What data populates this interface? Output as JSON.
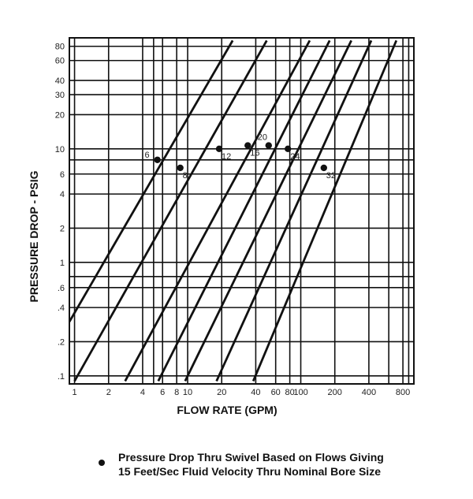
{
  "chart_data": {
    "type": "line",
    "xscale": "log",
    "yscale": "log",
    "xlabel": "FLOW RATE (GPM)",
    "ylabel": "PRESSURE DROP - PSIG",
    "xlim": [
      0.9,
      1000
    ],
    "ylim": [
      0.085,
      95
    ],
    "grid": true,
    "x_ticks": [
      {
        "v": 1,
        "label": "1"
      },
      {
        "v": 2,
        "label": "2"
      },
      {
        "v": 4,
        "label": "4"
      },
      {
        "v": 6,
        "label": "6"
      },
      {
        "v": 8,
        "label": "8"
      },
      {
        "v": 10,
        "label": "10"
      },
      {
        "v": 20,
        "label": "20"
      },
      {
        "v": 40,
        "label": "40"
      },
      {
        "v": 60,
        "label": "60"
      },
      {
        "v": 80,
        "label": "80"
      },
      {
        "v": 100,
        "label": "100"
      },
      {
        "v": 200,
        "label": "200"
      },
      {
        "v": 400,
        "label": "400"
      },
      {
        "v": 800,
        "label": "800"
      }
    ],
    "y_ticks": [
      {
        "v": 0.1,
        "label": ".1"
      },
      {
        "v": 0.2,
        "label": ".2"
      },
      {
        "v": 0.4,
        "label": ".4"
      },
      {
        "v": 0.6,
        "label": ".6"
      },
      {
        "v": 1,
        "label": "1"
      },
      {
        "v": 2,
        "label": "2"
      },
      {
        "v": 4,
        "label": "4"
      },
      {
        "v": 6,
        "label": "6"
      },
      {
        "v": 10,
        "label": "10"
      },
      {
        "v": 20,
        "label": "20"
      },
      {
        "v": 30,
        "label": "30"
      },
      {
        "v": 40,
        "label": "40"
      },
      {
        "v": 60,
        "label": "60"
      },
      {
        "v": 80,
        "label": "80"
      }
    ],
    "extra_gridlines_x": [
      5,
      10,
      60,
      80,
      100,
      600,
      900
    ],
    "extra_gridlines_y": [
      0.75,
      8,
      80
    ],
    "series": [
      {
        "name": "6",
        "x": [
          0.9,
          25
        ],
        "y": [
          0.3,
          90
        ],
        "marker": {
          "x": 5.4,
          "y": 8.0
        },
        "label_pos": "left"
      },
      {
        "name": "8",
        "x": [
          1.0,
          50
        ],
        "y": [
          0.09,
          90
        ],
        "marker": {
          "x": 8.6,
          "y": 6.8
        },
        "label_pos": "below-right"
      },
      {
        "name": "12",
        "x": [
          2.8,
          120
        ],
        "y": [
          0.09,
          90
        ],
        "marker": {
          "x": 19,
          "y": 10.0
        },
        "label_pos": "below-right"
      },
      {
        "name": "16",
        "x": [
          5.5,
          180
        ],
        "y": [
          0.09,
          90
        ],
        "marker": {
          "x": 34,
          "y": 10.7
        },
        "label_pos": "below-right"
      },
      {
        "name": "20",
        "x": [
          9.5,
          280
        ],
        "y": [
          0.09,
          90
        ],
        "marker": {
          "x": 52,
          "y": 10.7
        },
        "label_pos": "above-left"
      },
      {
        "name": "24",
        "x": [
          18,
          420
        ],
        "y": [
          0.09,
          90
        ],
        "marker": {
          "x": 77,
          "y": 10.0
        },
        "label_pos": "below-right"
      },
      {
        "name": "32",
        "x": [
          38,
          700
        ],
        "y": [
          0.09,
          90
        ],
        "marker": {
          "x": 160,
          "y": 6.8
        },
        "label_pos": "below-right"
      }
    ]
  },
  "legend": {
    "line1": "Pressure Drop Thru Swivel Based on Flows Giving",
    "line2": "15 Feet/Sec Fluid Velocity Thru Nominal Bore Size"
  }
}
